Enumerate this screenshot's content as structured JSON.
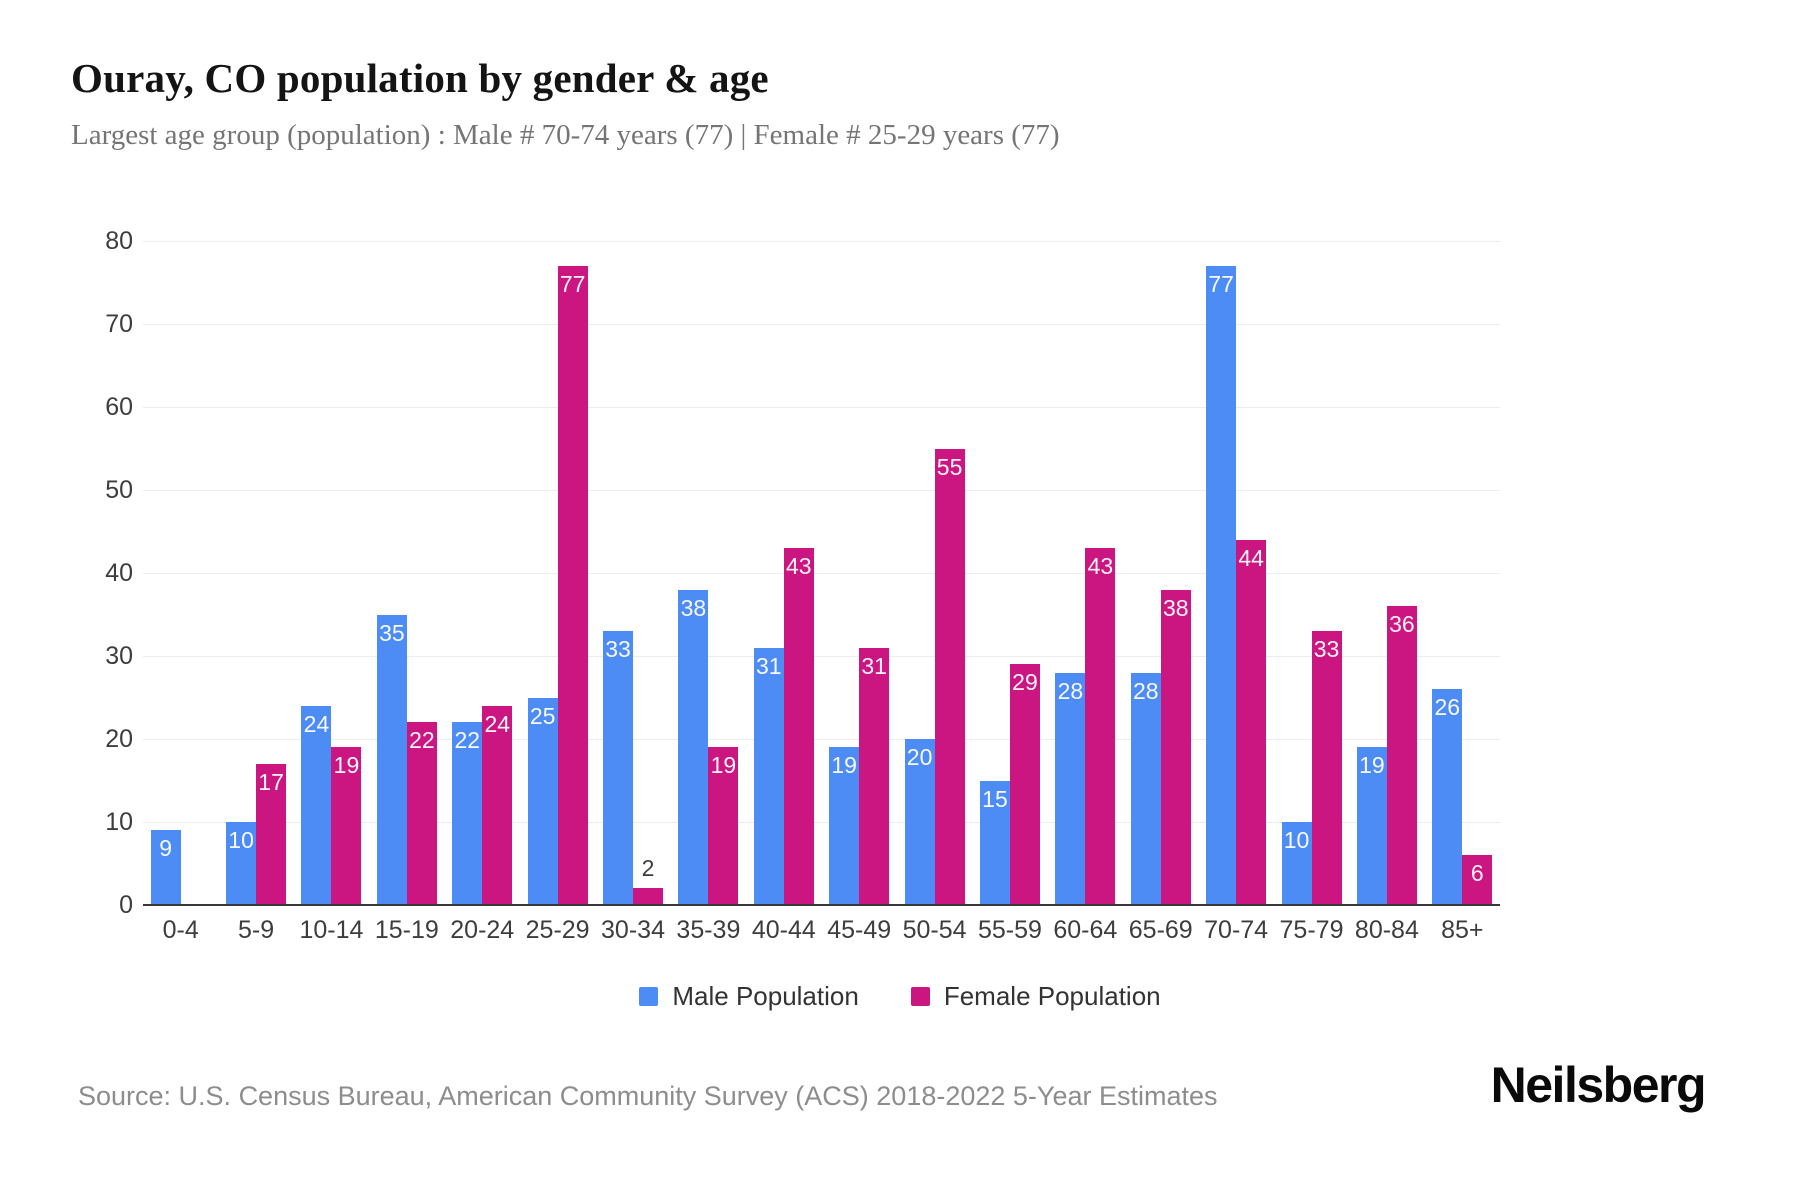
{
  "header": {
    "title": "Ouray, CO population by gender & age",
    "subtitle": "Largest age group (population) : Male # 70-74 years (77) | Female # 25-29 years (77)"
  },
  "chart_data": {
    "type": "bar",
    "title": "Ouray, CO population by gender & age",
    "categories": [
      "0-4",
      "5-9",
      "10-14",
      "15-19",
      "20-24",
      "25-29",
      "30-34",
      "35-39",
      "40-44",
      "45-49",
      "50-54",
      "55-59",
      "60-64",
      "65-69",
      "70-74",
      "75-79",
      "80-84",
      "85+"
    ],
    "series": [
      {
        "name": "Male Population",
        "color": "#4d8cf5",
        "values": [
          9,
          10,
          24,
          35,
          22,
          25,
          33,
          38,
          31,
          19,
          20,
          15,
          28,
          28,
          77,
          10,
          19,
          26
        ]
      },
      {
        "name": "Female Population",
        "color": "#cb1681",
        "values": [
          0,
          17,
          19,
          22,
          24,
          77,
          2,
          19,
          43,
          31,
          55,
          29,
          43,
          38,
          44,
          33,
          36,
          6
        ]
      }
    ],
    "xlabel": "",
    "ylabel": "",
    "ylim": [
      0,
      80
    ],
    "ytick_interval": 10,
    "grid": "horizontal",
    "legend_position": "bottom",
    "value_labels": "shown on bars; white inside bar, dark above bar when bar too short"
  },
  "footer": {
    "source": "Source: U.S. Census Bureau, American Community Survey (ACS) 2018-2022 5-Year Estimates",
    "brand": "Neilsberg"
  }
}
